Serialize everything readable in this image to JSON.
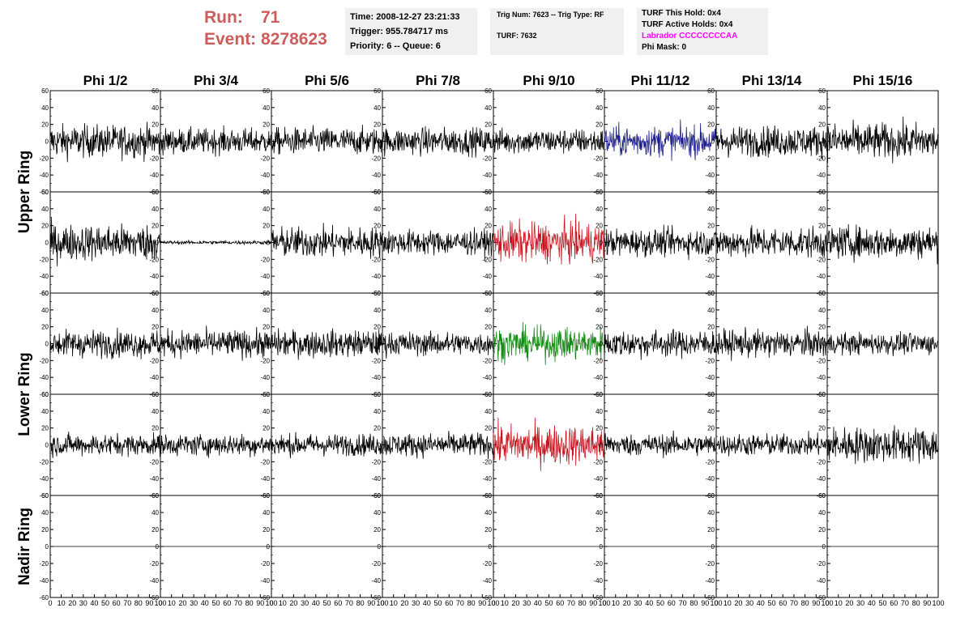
{
  "header": {
    "run_label": "Run:",
    "run_value": "71",
    "event_label": "Event:",
    "event_value": "8278623"
  },
  "info_box_1": {
    "time": "Time: 2008-12-27 23:21:33",
    "trigger": "Trigger: 955.784717 ms",
    "priority": "Priority: 6 -- Queue: 6"
  },
  "info_box_2": {
    "trig": "Trig Num: 7623 -- Trig Type: RF",
    "turf": "TURF: 7632"
  },
  "info_box_3": {
    "hold": "TURF This Hold: 0x4",
    "active": "TURF Active Holds: 0x4",
    "labrador": "Labrador CCCCCCCCAA",
    "phimask": "Phi Mask: 0"
  },
  "colors": {
    "header_text": "#cd5c5c",
    "info_bg": "#f0f0f0",
    "labrador": "#ff00ff",
    "trace_default": "#000000",
    "trace_blue": "#1c1c8c",
    "trace_red": "#c8141e",
    "trace_green": "#148c14"
  },
  "chart_data": {
    "type": "line",
    "column_titles": [
      "Phi 1/2",
      "Phi 3/4",
      "Phi 5/6",
      "Phi 7/8",
      "Phi 9/10",
      "Phi 11/12",
      "Phi 13/14",
      "Phi 15/16"
    ],
    "ring_labels": [
      {
        "text": "Upper Ring",
        "rows": [
          0,
          1
        ]
      },
      {
        "text": "Lower Ring",
        "rows": [
          2,
          3
        ]
      },
      {
        "text": "Nadir Ring",
        "rows": [
          4
        ]
      }
    ],
    "xlim": [
      0,
      100
    ],
    "ylim": [
      -60,
      60
    ],
    "x_ticks": [
      0,
      10,
      20,
      30,
      40,
      50,
      60,
      70,
      80,
      90,
      100
    ],
    "y_ticks": [
      -60,
      -40,
      -20,
      0,
      20,
      40,
      60
    ],
    "rows": [
      {
        "amplitudes": [
          18,
          14,
          15,
          15,
          14,
          17,
          17,
          20
        ],
        "colors": [
          "#000000",
          "#000000",
          "#000000",
          "#000000",
          "#000000",
          "#1c1c8c",
          "#000000",
          "#000000"
        ]
      },
      {
        "amplitudes": [
          20,
          2,
          17,
          14,
          22,
          15,
          17,
          18
        ],
        "colors": [
          "#000000",
          "#000000",
          "#000000",
          "#000000",
          "#c8141e",
          "#000000",
          "#000000",
          "#000000"
        ]
      },
      {
        "amplitudes": [
          15,
          15,
          15,
          13,
          18,
          15,
          15,
          12
        ],
        "colors": [
          "#000000",
          "#000000",
          "#000000",
          "#000000",
          "#148c14",
          "#000000",
          "#000000",
          "#000000"
        ]
      },
      {
        "amplitudes": [
          12,
          12,
          12,
          13,
          22,
          12,
          12,
          20
        ],
        "colors": [
          "#000000",
          "#000000",
          "#000000",
          "#000000",
          "#c8141e",
          "#000000",
          "#000000",
          "#000000"
        ]
      },
      {
        "amplitudes": [
          0,
          0,
          0,
          0,
          0,
          0,
          0,
          0
        ],
        "colors": [
          "#000000",
          "#000000",
          "#000000",
          "#000000",
          "#000000",
          "#000000",
          "#000000",
          "#000000"
        ]
      }
    ]
  }
}
